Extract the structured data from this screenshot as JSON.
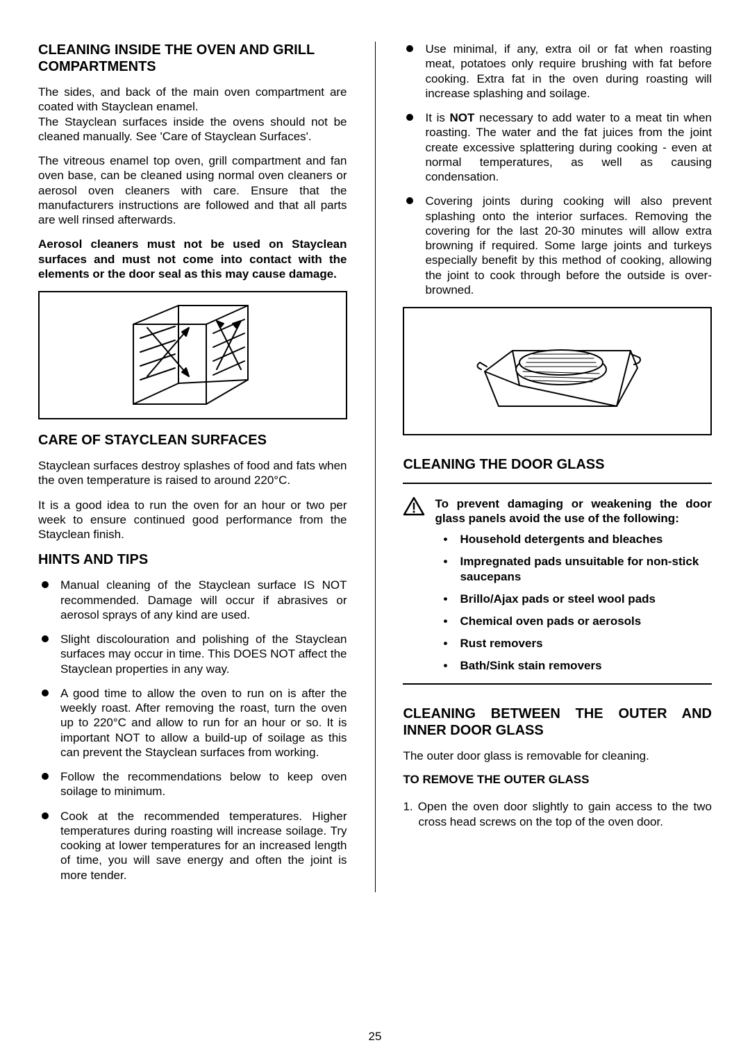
{
  "page_number": "25",
  "left": {
    "h1": "CLEANING INSIDE THE OVEN AND GRILL COMPARTMENTS",
    "p1": "The sides, and back of the main oven compartment are coated with Stayclean enamel.",
    "p2": "The Stayclean surfaces inside the ovens should not be cleaned manually. See 'Care of Stayclean Surfaces'.",
    "p3": "The vitreous enamel top oven, grill compartment and fan oven base, can be cleaned using normal oven cleaners or aerosol oven cleaners with care.  Ensure that the manufacturers instructions are followed and that all parts are well rinsed afterwards.",
    "p4": "Aerosol cleaners must not be used on Stayclean surfaces and must not come into contact with the elements or the door seal as this may cause damage.",
    "h2": "CARE OF STAYCLEAN SURFACES",
    "p5": "Stayclean surfaces destroy splashes of food and fats when the oven temperature is raised to around 220°C.",
    "p6": "It is a good idea to run the oven for an hour or two per week to ensure continued good performance from the Stayclean finish.",
    "h3": "HINTS AND TIPS",
    "hints": [
      "Manual cleaning of the Stayclean surface IS NOT recommended.  Damage will occur if abrasives or aerosol sprays of any kind are used.",
      "Slight discolouration and polishing of the Stayclean surfaces may occur in time. This DOES NOT affect the Stayclean properties in any way.",
      "A good time to allow the oven to run on is after the weekly roast.  After removing the roast, turn the oven up to 220°C and allow to run for an hour or so.  It is important NOT to allow a build-up of soilage as this can prevent the Stayclean surfaces from working.",
      "Follow the recommendations below to keep oven soilage to minimum.",
      "Cook at the recommended temperatures.  Higher temperatures during roasting will increase soilage.  Try cooking at lower temperatures for an increased length of time, you will save energy and often the joint is more tender."
    ]
  },
  "right": {
    "tips": [
      "Use minimal, if any, extra oil or fat when roasting meat, potatoes only require brushing with fat before cooking.  Extra fat in the oven during roasting will increase splashing and soilage.",
      "It is <b>NOT</b> necessary to add water to a meat tin when roasting.  The water and the fat juices from the joint create excessive splattering during cooking - even at normal temperatures, as well as causing condensation.",
      "Covering joints during cooking will also prevent splashing onto the interior surfaces.  Removing the covering for the last 20-30 minutes will allow extra browning if required.  Some large joints and turkeys especially benefit by this method of cooking, allowing the joint to cook through before the outside is over-browned."
    ],
    "h1": "CLEANING THE DOOR GLASS",
    "warning": "To prevent damaging or weakening the door glass panels avoid the use of the following:",
    "avoid": [
      "Household detergents and bleaches",
      "Impregnated pads unsuitable for non-stick saucepans",
      "Brillo/Ajax pads or steel wool pads",
      "Chemical oven pads or aerosols",
      "Rust removers",
      "Bath/Sink stain removers"
    ],
    "h2": "CLEANING BETWEEN THE OUTER AND INNER DOOR GLASS",
    "p1": "The outer door glass is removable for cleaning.",
    "h3": "TO REMOVE THE OUTER GLASS",
    "step1": "1.  Open the oven door slightly to gain access to the two cross head screws on the top of the oven door."
  }
}
